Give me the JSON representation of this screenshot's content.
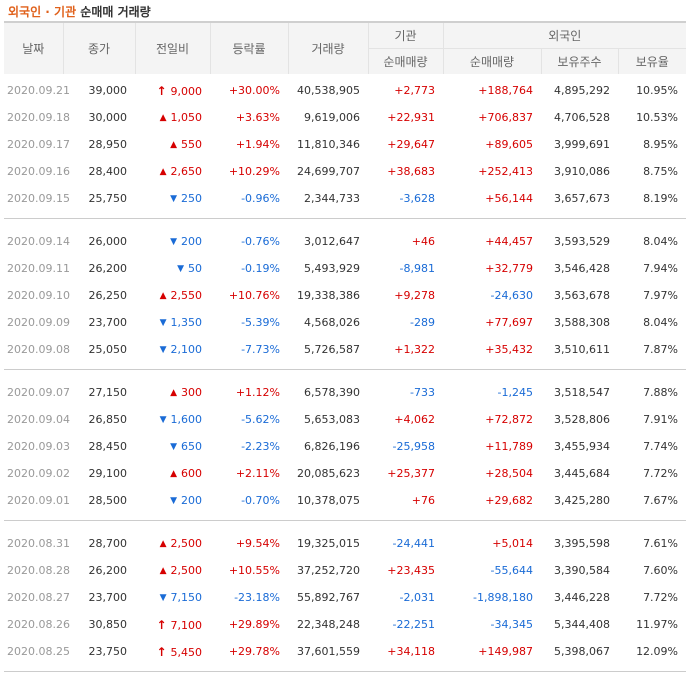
{
  "title": {
    "highlight": "외국인 · 기관",
    "rest": " 순매매 거래량"
  },
  "headers": {
    "date": "날짜",
    "close": "종가",
    "change": "전일비",
    "rate": "등락률",
    "volume": "거래량",
    "institution": "기관",
    "foreigner": "외국인",
    "inst_net": "순매매량",
    "for_net": "순매매량",
    "for_hold": "보유주수",
    "for_ratio": "보유율"
  },
  "colors": {
    "up": "#d60000",
    "down": "#1a6bd6",
    "title_accent": "#e0611b"
  },
  "groups": [
    [
      {
        "date": "2020.09.21",
        "close": "39,000",
        "dir": "limit-up",
        "change": "9,000",
        "rate": "+30.00%",
        "volume": "40,538,905",
        "inst_net": "+2,773",
        "for_net": "+188,764",
        "for_hold": "4,895,292",
        "for_ratio": "10.95%"
      },
      {
        "date": "2020.09.18",
        "close": "30,000",
        "dir": "up",
        "change": "1,050",
        "rate": "+3.63%",
        "volume": "9,619,006",
        "inst_net": "+22,931",
        "for_net": "+706,837",
        "for_hold": "4,706,528",
        "for_ratio": "10.53%"
      },
      {
        "date": "2020.09.17",
        "close": "28,950",
        "dir": "up",
        "change": "550",
        "rate": "+1.94%",
        "volume": "11,810,346",
        "inst_net": "+29,647",
        "for_net": "+89,605",
        "for_hold": "3,999,691",
        "for_ratio": "8.95%"
      },
      {
        "date": "2020.09.16",
        "close": "28,400",
        "dir": "up",
        "change": "2,650",
        "rate": "+10.29%",
        "volume": "24,699,707",
        "inst_net": "+38,683",
        "for_net": "+252,413",
        "for_hold": "3,910,086",
        "for_ratio": "8.75%"
      },
      {
        "date": "2020.09.15",
        "close": "25,750",
        "dir": "down",
        "change": "250",
        "rate": "-0.96%",
        "volume": "2,344,733",
        "inst_net": "-3,628",
        "for_net": "+56,144",
        "for_hold": "3,657,673",
        "for_ratio": "8.19%"
      }
    ],
    [
      {
        "date": "2020.09.14",
        "close": "26,000",
        "dir": "down",
        "change": "200",
        "rate": "-0.76%",
        "volume": "3,012,647",
        "inst_net": "+46",
        "for_net": "+44,457",
        "for_hold": "3,593,529",
        "for_ratio": "8.04%"
      },
      {
        "date": "2020.09.11",
        "close": "26,200",
        "dir": "down",
        "change": "50",
        "rate": "-0.19%",
        "volume": "5,493,929",
        "inst_net": "-8,981",
        "for_net": "+32,779",
        "for_hold": "3,546,428",
        "for_ratio": "7.94%"
      },
      {
        "date": "2020.09.10",
        "close": "26,250",
        "dir": "up",
        "change": "2,550",
        "rate": "+10.76%",
        "volume": "19,338,386",
        "inst_net": "+9,278",
        "for_net": "-24,630",
        "for_hold": "3,563,678",
        "for_ratio": "7.97%"
      },
      {
        "date": "2020.09.09",
        "close": "23,700",
        "dir": "down",
        "change": "1,350",
        "rate": "-5.39%",
        "volume": "4,568,026",
        "inst_net": "-289",
        "for_net": "+77,697",
        "for_hold": "3,588,308",
        "for_ratio": "8.04%"
      },
      {
        "date": "2020.09.08",
        "close": "25,050",
        "dir": "down",
        "change": "2,100",
        "rate": "-7.73%",
        "volume": "5,726,587",
        "inst_net": "+1,322",
        "for_net": "+35,432",
        "for_hold": "3,510,611",
        "for_ratio": "7.87%"
      }
    ],
    [
      {
        "date": "2020.09.07",
        "close": "27,150",
        "dir": "up",
        "change": "300",
        "rate": "+1.12%",
        "volume": "6,578,390",
        "inst_net": "-733",
        "for_net": "-1,245",
        "for_hold": "3,518,547",
        "for_ratio": "7.88%"
      },
      {
        "date": "2020.09.04",
        "close": "26,850",
        "dir": "down",
        "change": "1,600",
        "rate": "-5.62%",
        "volume": "5,653,083",
        "inst_net": "+4,062",
        "for_net": "+72,872",
        "for_hold": "3,528,806",
        "for_ratio": "7.91%"
      },
      {
        "date": "2020.09.03",
        "close": "28,450",
        "dir": "down",
        "change": "650",
        "rate": "-2.23%",
        "volume": "6,826,196",
        "inst_net": "-25,958",
        "for_net": "+11,789",
        "for_hold": "3,455,934",
        "for_ratio": "7.74%"
      },
      {
        "date": "2020.09.02",
        "close": "29,100",
        "dir": "up",
        "change": "600",
        "rate": "+2.11%",
        "volume": "20,085,623",
        "inst_net": "+25,377",
        "for_net": "+28,504",
        "for_hold": "3,445,684",
        "for_ratio": "7.72%"
      },
      {
        "date": "2020.09.01",
        "close": "28,500",
        "dir": "down",
        "change": "200",
        "rate": "-0.70%",
        "volume": "10,378,075",
        "inst_net": "+76",
        "for_net": "+29,682",
        "for_hold": "3,425,280",
        "for_ratio": "7.67%"
      }
    ],
    [
      {
        "date": "2020.08.31",
        "close": "28,700",
        "dir": "up",
        "change": "2,500",
        "rate": "+9.54%",
        "volume": "19,325,015",
        "inst_net": "-24,441",
        "for_net": "+5,014",
        "for_hold": "3,395,598",
        "for_ratio": "7.61%"
      },
      {
        "date": "2020.08.28",
        "close": "26,200",
        "dir": "up",
        "change": "2,500",
        "rate": "+10.55%",
        "volume": "37,252,720",
        "inst_net": "+23,435",
        "for_net": "-55,644",
        "for_hold": "3,390,584",
        "for_ratio": "7.60%"
      },
      {
        "date": "2020.08.27",
        "close": "23,700",
        "dir": "down",
        "change": "7,150",
        "rate": "-23.18%",
        "volume": "55,892,767",
        "inst_net": "-2,031",
        "for_net": "-1,898,180",
        "for_hold": "3,446,228",
        "for_ratio": "7.72%"
      },
      {
        "date": "2020.08.26",
        "close": "30,850",
        "dir": "limit-up",
        "change": "7,100",
        "rate": "+29.89%",
        "volume": "22,348,248",
        "inst_net": "-22,251",
        "for_net": "-34,345",
        "for_hold": "5,344,408",
        "for_ratio": "11.97%"
      },
      {
        "date": "2020.08.25",
        "close": "23,750",
        "dir": "limit-up",
        "change": "5,450",
        "rate": "+29.78%",
        "volume": "37,601,559",
        "inst_net": "+34,118",
        "for_net": "+149,987",
        "for_hold": "5,398,067",
        "for_ratio": "12.09%"
      }
    ]
  ]
}
